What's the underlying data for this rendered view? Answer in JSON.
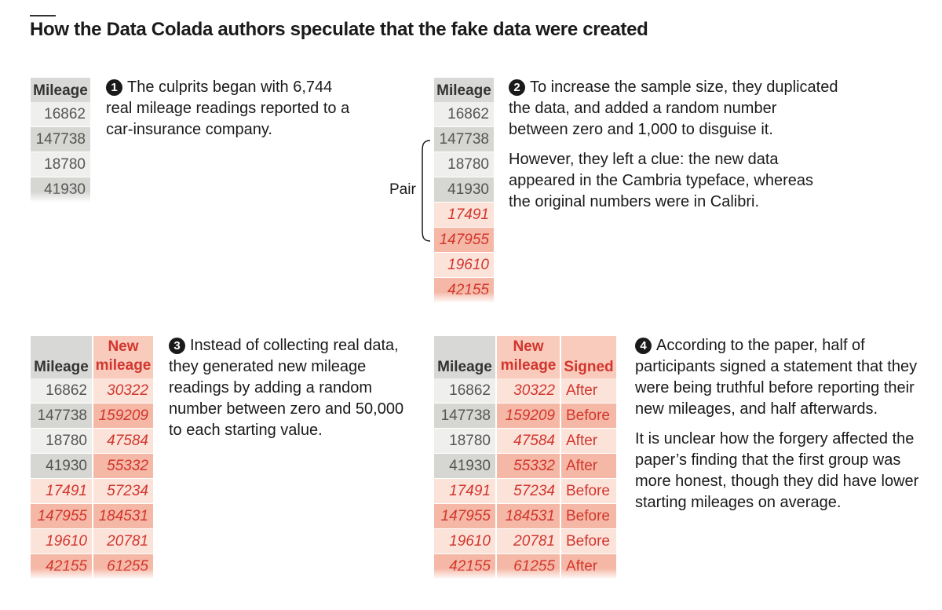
{
  "title": "How the Data Colada authors speculate that the fake data were created",
  "colors": {
    "header_grey": "#d8d8d6",
    "row_grey_light": "#efefed",
    "row_grey_dark": "#d6d6d3",
    "row_pink_light": "#fbe3da",
    "row_pink_dark": "#f5b8a6",
    "header_pink": "#f8cbbd",
    "red_text": "#d2362d"
  },
  "steps": [
    {
      "number": "1",
      "text": "The culprits began with 6,744 real mileage readings reported to a car-insurance company.",
      "headers": {
        "mileage": "Mileage"
      },
      "rows": [
        {
          "mileage": "16862"
        },
        {
          "mileage": "147738"
        },
        {
          "mileage": "18780"
        },
        {
          "mileage": "41930"
        }
      ]
    },
    {
      "number": "2",
      "text": "To increase the sample size, they duplicated the data, and added a random number between zero and 1,000 to disguise it.",
      "text2": "However, they left a clue: the new data appeared in the Cambria typeface, whereas the original numbers were in Calibri.",
      "pair_label": "Pair",
      "headers": {
        "mileage": "Mileage"
      },
      "rows": [
        {
          "mileage": "16862"
        },
        {
          "mileage": "147738"
        },
        {
          "mileage": "18780"
        },
        {
          "mileage": "41930"
        },
        {
          "mileage": "17491"
        },
        {
          "mileage": "147955"
        },
        {
          "mileage": "19610"
        },
        {
          "mileage": "42155"
        }
      ]
    },
    {
      "number": "3",
      "text": "Instead of collecting real data, they generated new mileage readings by adding a random number between zero and 50,000 to each starting value.",
      "headers": {
        "mileage": "Mileage",
        "new_line1": "New",
        "new_line2": "mileage"
      },
      "rows": [
        {
          "mileage": "16862",
          "new": "30322"
        },
        {
          "mileage": "147738",
          "new": "159209"
        },
        {
          "mileage": "18780",
          "new": "47584"
        },
        {
          "mileage": "41930",
          "new": "55332"
        },
        {
          "mileage": "17491",
          "new": "57234"
        },
        {
          "mileage": "147955",
          "new": "184531"
        },
        {
          "mileage": "19610",
          "new": "20781"
        },
        {
          "mileage": "42155",
          "new": "61255"
        }
      ]
    },
    {
      "number": "4",
      "text": "According to the paper, half of participants signed a statement that they were being truthful before reporting their new mileages, and half afterwards.",
      "text2": "It is unclear how the forgery affected the paper’s finding that the first group was more honest, though they did have lower starting mileages on average.",
      "headers": {
        "mileage": "Mileage",
        "new_line1": "New",
        "new_line2": "mileage",
        "signed": "Signed"
      },
      "rows": [
        {
          "mileage": "16862",
          "new": "30322",
          "signed": "After"
        },
        {
          "mileage": "147738",
          "new": "159209",
          "signed": "Before"
        },
        {
          "mileage": "18780",
          "new": "47584",
          "signed": "After"
        },
        {
          "mileage": "41930",
          "new": "55332",
          "signed": "After"
        },
        {
          "mileage": "17491",
          "new": "57234",
          "signed": "Before"
        },
        {
          "mileage": "147955",
          "new": "184531",
          "signed": "Before"
        },
        {
          "mileage": "19610",
          "new": "20781",
          "signed": "Before"
        },
        {
          "mileage": "42155",
          "new": "61255",
          "signed": "After"
        }
      ]
    }
  ]
}
